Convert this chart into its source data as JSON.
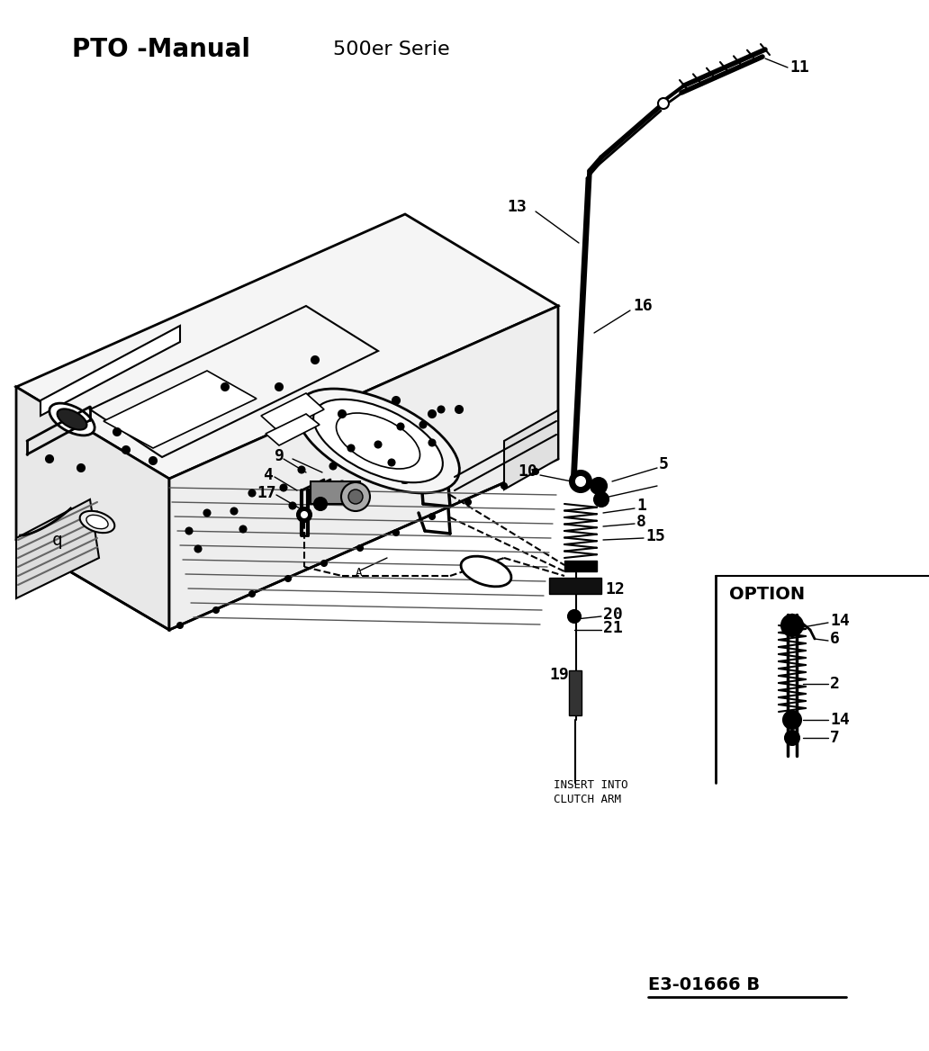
{
  "title_left": "PTO -Manual",
  "title_center": "500er Serie",
  "part_number": "E3-01666 B",
  "option_label": "OPTION",
  "bg_color": "#ffffff",
  "line_color": "#000000",
  "text_color": "#000000",
  "figw": 10.32,
  "figh": 11.68,
  "dpi": 100
}
